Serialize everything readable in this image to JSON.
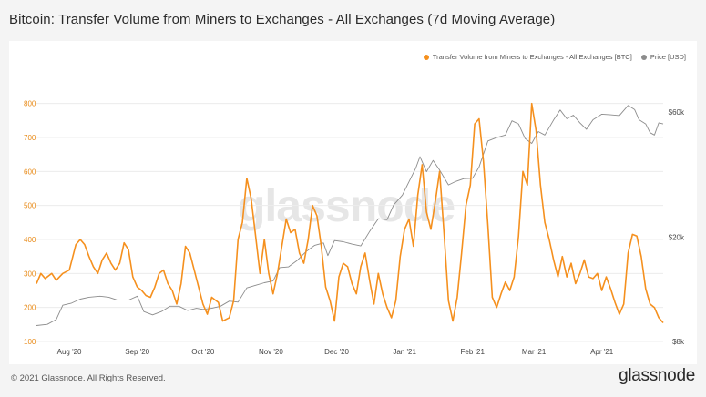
{
  "title": "Bitcoin: Transfer Volume from Miners to Exchanges - All Exchanges (7d Moving Average)",
  "footer": {
    "copyright": "© 2021 Glassnode. All Rights Reserved.",
    "brand": "glassnode"
  },
  "watermark": "glassnode",
  "legend": {
    "series_a": "Transfer Volume from Miners to Exchanges - All Exchanges [BTC]",
    "series_b": "Price [USD]"
  },
  "colors": {
    "volume": "#f5901e",
    "price": "#8c8c8c"
  },
  "chart_data": {
    "type": "line",
    "x_range": [
      "2020-07-17",
      "2021-04-29"
    ],
    "x_ticks": [
      {
        "date": "2020-08-01",
        "label": "Aug '20"
      },
      {
        "date": "2020-09-01",
        "label": "Sep '20"
      },
      {
        "date": "2020-10-01",
        "label": "Oct '20"
      },
      {
        "date": "2020-11-01",
        "label": "Nov '20"
      },
      {
        "date": "2020-12-01",
        "label": "Dec '20"
      },
      {
        "date": "2021-01-01",
        "label": "Jan '21"
      },
      {
        "date": "2021-02-01",
        "label": "Feb '21"
      },
      {
        "date": "2021-03-01",
        "label": "Mar '21"
      },
      {
        "date": "2021-04-01",
        "label": "Apr '21"
      }
    ],
    "y_left": {
      "label": "",
      "ylim": [
        100,
        850
      ],
      "ticks": [
        100,
        200,
        300,
        400,
        500,
        600,
        700,
        800
      ]
    },
    "y_right": {
      "label": "",
      "scale": "log",
      "ylim": [
        8000,
        75000
      ],
      "ticks": [
        {
          "value": 8000,
          "label": "$8k"
        },
        {
          "value": 20000,
          "label": "$20k"
        },
        {
          "value": 60000,
          "label": "$60k"
        }
      ]
    },
    "grid": "horizontal",
    "legend_position": "top-right",
    "series": [
      {
        "name": "Transfer Volume from Miners to Exchanges - All Exchanges [BTC]",
        "axis": "left",
        "points": [
          [
            "2020-07-17",
            270
          ],
          [
            "2020-07-19",
            300
          ],
          [
            "2020-07-21",
            285
          ],
          [
            "2020-07-24",
            300
          ],
          [
            "2020-07-26",
            280
          ],
          [
            "2020-07-29",
            300
          ],
          [
            "2020-08-01",
            310
          ],
          [
            "2020-08-04",
            385
          ],
          [
            "2020-08-06",
            400
          ],
          [
            "2020-08-08",
            385
          ],
          [
            "2020-08-10",
            350
          ],
          [
            "2020-08-12",
            320
          ],
          [
            "2020-08-14",
            300
          ],
          [
            "2020-08-16",
            340
          ],
          [
            "2020-08-18",
            360
          ],
          [
            "2020-08-20",
            330
          ],
          [
            "2020-08-22",
            310
          ],
          [
            "2020-08-24",
            330
          ],
          [
            "2020-08-26",
            390
          ],
          [
            "2020-08-28",
            370
          ],
          [
            "2020-08-30",
            290
          ],
          [
            "2020-09-01",
            260
          ],
          [
            "2020-09-03",
            250
          ],
          [
            "2020-09-05",
            235
          ],
          [
            "2020-09-07",
            230
          ],
          [
            "2020-09-09",
            260
          ],
          [
            "2020-09-11",
            300
          ],
          [
            "2020-09-13",
            310
          ],
          [
            "2020-09-15",
            270
          ],
          [
            "2020-09-17",
            250
          ],
          [
            "2020-09-19",
            210
          ],
          [
            "2020-09-21",
            270
          ],
          [
            "2020-09-23",
            380
          ],
          [
            "2020-09-25",
            360
          ],
          [
            "2020-09-27",
            310
          ],
          [
            "2020-09-29",
            260
          ],
          [
            "2020-10-01",
            210
          ],
          [
            "2020-10-03",
            180
          ],
          [
            "2020-10-05",
            230
          ],
          [
            "2020-10-08",
            215
          ],
          [
            "2020-10-10",
            160
          ],
          [
            "2020-10-13",
            170
          ],
          [
            "2020-10-15",
            220
          ],
          [
            "2020-10-17",
            400
          ],
          [
            "2020-10-19",
            450
          ],
          [
            "2020-10-21",
            580
          ],
          [
            "2020-10-23",
            520
          ],
          [
            "2020-10-25",
            410
          ],
          [
            "2020-10-27",
            300
          ],
          [
            "2020-10-29",
            400
          ],
          [
            "2020-10-31",
            300
          ],
          [
            "2020-11-02",
            240
          ],
          [
            "2020-11-04",
            300
          ],
          [
            "2020-11-06",
            380
          ],
          [
            "2020-11-08",
            460
          ],
          [
            "2020-11-10",
            420
          ],
          [
            "2020-11-12",
            430
          ],
          [
            "2020-11-14",
            360
          ],
          [
            "2020-11-16",
            330
          ],
          [
            "2020-11-18",
            400
          ],
          [
            "2020-11-20",
            500
          ],
          [
            "2020-11-22",
            470
          ],
          [
            "2020-11-24",
            380
          ],
          [
            "2020-11-26",
            260
          ],
          [
            "2020-11-28",
            220
          ],
          [
            "2020-11-30",
            160
          ],
          [
            "2020-12-02",
            290
          ],
          [
            "2020-12-04",
            330
          ],
          [
            "2020-12-06",
            320
          ],
          [
            "2020-12-08",
            270
          ],
          [
            "2020-12-10",
            240
          ],
          [
            "2020-12-12",
            320
          ],
          [
            "2020-12-14",
            360
          ],
          [
            "2020-12-16",
            280
          ],
          [
            "2020-12-18",
            210
          ],
          [
            "2020-12-20",
            300
          ],
          [
            "2020-12-22",
            240
          ],
          [
            "2020-12-24",
            200
          ],
          [
            "2020-12-26",
            170
          ],
          [
            "2020-12-28",
            220
          ],
          [
            "2020-12-30",
            350
          ],
          [
            "2021-01-01",
            430
          ],
          [
            "2021-01-03",
            460
          ],
          [
            "2021-01-05",
            380
          ],
          [
            "2021-01-07",
            530
          ],
          [
            "2021-01-09",
            620
          ],
          [
            "2021-01-11",
            480
          ],
          [
            "2021-01-13",
            430
          ],
          [
            "2021-01-15",
            510
          ],
          [
            "2021-01-17",
            600
          ],
          [
            "2021-01-19",
            420
          ],
          [
            "2021-01-21",
            220
          ],
          [
            "2021-01-23",
            160
          ],
          [
            "2021-01-25",
            230
          ],
          [
            "2021-01-27",
            360
          ],
          [
            "2021-01-29",
            500
          ],
          [
            "2021-01-31",
            560
          ],
          [
            "2021-02-02",
            740
          ],
          [
            "2021-02-04",
            755
          ],
          [
            "2021-02-06",
            630
          ],
          [
            "2021-02-08",
            440
          ],
          [
            "2021-02-10",
            230
          ],
          [
            "2021-02-12",
            200
          ],
          [
            "2021-02-14",
            240
          ],
          [
            "2021-02-16",
            275
          ],
          [
            "2021-02-18",
            250
          ],
          [
            "2021-02-20",
            290
          ],
          [
            "2021-02-22",
            410
          ],
          [
            "2021-02-24",
            600
          ],
          [
            "2021-02-26",
            560
          ],
          [
            "2021-02-28",
            800
          ],
          [
            "2021-03-02",
            720
          ],
          [
            "2021-03-04",
            560
          ],
          [
            "2021-03-06",
            450
          ],
          [
            "2021-03-08",
            400
          ],
          [
            "2021-03-10",
            340
          ],
          [
            "2021-03-12",
            290
          ],
          [
            "2021-03-14",
            350
          ],
          [
            "2021-03-16",
            290
          ],
          [
            "2021-03-18",
            330
          ],
          [
            "2021-03-20",
            270
          ],
          [
            "2021-03-22",
            300
          ],
          [
            "2021-03-24",
            340
          ],
          [
            "2021-03-26",
            290
          ],
          [
            "2021-03-28",
            285
          ],
          [
            "2021-03-30",
            300
          ],
          [
            "2021-04-01",
            250
          ],
          [
            "2021-04-03",
            290
          ],
          [
            "2021-04-05",
            255
          ],
          [
            "2021-04-07",
            215
          ],
          [
            "2021-04-09",
            180
          ],
          [
            "2021-04-11",
            210
          ],
          [
            "2021-04-13",
            360
          ],
          [
            "2021-04-15",
            415
          ],
          [
            "2021-04-17",
            410
          ],
          [
            "2021-04-19",
            350
          ],
          [
            "2021-04-21",
            255
          ],
          [
            "2021-04-23",
            210
          ],
          [
            "2021-04-25",
            200
          ],
          [
            "2021-04-27",
            170
          ],
          [
            "2021-04-29",
            155
          ]
        ]
      },
      {
        "name": "Price [USD]",
        "axis": "right",
        "points": [
          [
            "2020-07-17",
            9200
          ],
          [
            "2020-07-22",
            9300
          ],
          [
            "2020-07-26",
            9700
          ],
          [
            "2020-07-29",
            11000
          ],
          [
            "2020-08-02",
            11200
          ],
          [
            "2020-08-06",
            11600
          ],
          [
            "2020-08-10",
            11800
          ],
          [
            "2020-08-15",
            11900
          ],
          [
            "2020-08-19",
            11800
          ],
          [
            "2020-08-23",
            11500
          ],
          [
            "2020-08-28",
            11500
          ],
          [
            "2020-09-01",
            11900
          ],
          [
            "2020-09-04",
            10400
          ],
          [
            "2020-09-08",
            10100
          ],
          [
            "2020-09-12",
            10400
          ],
          [
            "2020-09-16",
            10900
          ],
          [
            "2020-09-20",
            10900
          ],
          [
            "2020-09-24",
            10500
          ],
          [
            "2020-09-28",
            10700
          ],
          [
            "2020-10-01",
            10600
          ],
          [
            "2020-10-05",
            10700
          ],
          [
            "2020-10-09",
            10900
          ],
          [
            "2020-10-13",
            11400
          ],
          [
            "2020-10-17",
            11300
          ],
          [
            "2020-10-21",
            12800
          ],
          [
            "2020-10-25",
            13100
          ],
          [
            "2020-10-29",
            13400
          ],
          [
            "2020-11-02",
            13600
          ],
          [
            "2020-11-05",
            15300
          ],
          [
            "2020-11-09",
            15400
          ],
          [
            "2020-11-13",
            16300
          ],
          [
            "2020-11-17",
            17600
          ],
          [
            "2020-11-21",
            18600
          ],
          [
            "2020-11-25",
            19000
          ],
          [
            "2020-11-27",
            17000
          ],
          [
            "2020-11-30",
            19400
          ],
          [
            "2020-12-04",
            19200
          ],
          [
            "2020-12-08",
            18800
          ],
          [
            "2020-12-12",
            18500
          ],
          [
            "2020-12-16",
            21000
          ],
          [
            "2020-12-20",
            23500
          ],
          [
            "2020-12-24",
            23300
          ],
          [
            "2020-12-27",
            26500
          ],
          [
            "2020-12-31",
            28900
          ],
          [
            "2021-01-03",
            32500
          ],
          [
            "2021-01-06",
            36500
          ],
          [
            "2021-01-08",
            40500
          ],
          [
            "2021-01-11",
            35500
          ],
          [
            "2021-01-14",
            39200
          ],
          [
            "2021-01-17",
            36000
          ],
          [
            "2021-01-21",
            31600
          ],
          [
            "2021-01-24",
            32500
          ],
          [
            "2021-01-28",
            33400
          ],
          [
            "2021-02-01",
            33500
          ],
          [
            "2021-02-04",
            37000
          ],
          [
            "2021-02-08",
            46500
          ],
          [
            "2021-02-12",
            47900
          ],
          [
            "2021-02-16",
            49000
          ],
          [
            "2021-02-19",
            55500
          ],
          [
            "2021-02-22",
            54000
          ],
          [
            "2021-02-25",
            47500
          ],
          [
            "2021-02-28",
            45500
          ],
          [
            "2021-03-03",
            50500
          ],
          [
            "2021-03-06",
            49000
          ],
          [
            "2021-03-10",
            55900
          ],
          [
            "2021-03-13",
            61000
          ],
          [
            "2021-03-16",
            56500
          ],
          [
            "2021-03-19",
            58300
          ],
          [
            "2021-03-22",
            54500
          ],
          [
            "2021-03-25",
            51500
          ],
          [
            "2021-03-28",
            56000
          ],
          [
            "2021-04-01",
            58800
          ],
          [
            "2021-04-05",
            58500
          ],
          [
            "2021-04-09",
            58100
          ],
          [
            "2021-04-13",
            63500
          ],
          [
            "2021-04-16",
            61200
          ],
          [
            "2021-04-18",
            56000
          ],
          [
            "2021-04-21",
            54000
          ],
          [
            "2021-04-23",
            50000
          ],
          [
            "2021-04-25",
            49000
          ],
          [
            "2021-04-27",
            54500
          ],
          [
            "2021-04-29",
            54000
          ]
        ]
      }
    ]
  }
}
